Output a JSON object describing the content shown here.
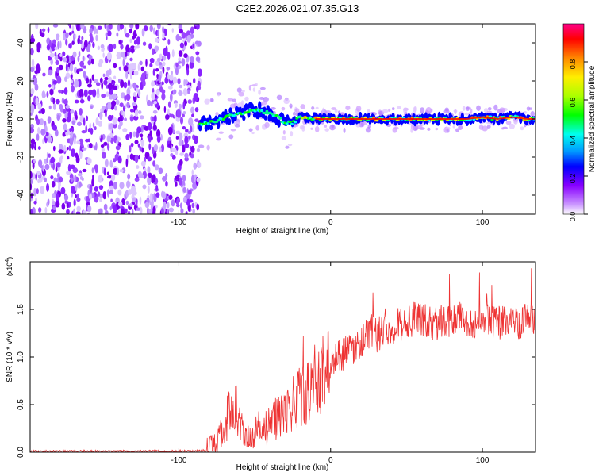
{
  "title": "C2E2.2026.021.07.35.G13",
  "colors": {
    "snr_line": "#ee3333",
    "axis": "#000000",
    "colorbar": [
      "#ffffff",
      "#cc99ff",
      "#8800ff",
      "#0000ff",
      "#0099ff",
      "#00ffee",
      "#00ff00",
      "#aaff00",
      "#ffee00",
      "#ff8800",
      "#ff0000",
      "#ff0088"
    ]
  },
  "chart_data": [
    {
      "type": "heatmap",
      "name": "spectrogram",
      "xlabel": "Height of straight line (km)",
      "ylabel": "Frequency (Hz)",
      "xlim": [
        -198,
        135
      ],
      "ylim": [
        -50,
        50
      ],
      "xticks": [
        -100,
        0,
        100
      ],
      "xtick_labels": [
        "-100",
        "0",
        "100"
      ],
      "yticks": [
        -40,
        -20,
        0,
        20,
        40
      ],
      "ytick_labels": [
        "-40",
        "-20",
        "0",
        "20",
        "40"
      ],
      "noise_region_x": [
        -198,
        -86
      ],
      "signal_track": {
        "x": [
          -86,
          -80,
          -72,
          -65,
          -58,
          -52,
          -46,
          -40,
          -35,
          -30,
          -25,
          -20,
          -15,
          -10,
          -5,
          0,
          10,
          20,
          30,
          40,
          50,
          60,
          70,
          80,
          90,
          100,
          110,
          120,
          130,
          135
        ],
        "y": [
          -3,
          -2,
          0,
          2,
          3,
          5,
          4,
          3,
          1,
          -2,
          -2,
          1,
          1,
          0,
          0,
          0,
          0,
          0,
          0,
          0,
          0,
          0,
          0,
          0,
          0,
          1,
          0,
          1,
          0,
          0
        ]
      },
      "colorbar": {
        "label": "Normalized spectral amplitude",
        "range": [
          0,
          1
        ],
        "ticks": [
          0.0,
          0.2,
          0.4,
          0.6,
          0.8
        ],
        "tick_labels": [
          "0.0",
          "0.2",
          "0.4",
          "0.6",
          "0.8"
        ]
      }
    },
    {
      "type": "line",
      "name": "snr",
      "xlabel": "Height of straight line (km)",
      "ylabel": "SNR (10 * v/v)",
      "exponent_label": "(x10",
      "exponent_power": "4",
      "exponent_close": ")",
      "xlim": [
        -198,
        135
      ],
      "ylim": [
        0,
        2.0
      ],
      "xticks": [
        -100,
        0,
        100
      ],
      "xtick_labels": [
        "-100",
        "0",
        "100"
      ],
      "yticks": [
        0.0,
        0.5,
        1.0,
        1.5
      ],
      "ytick_labels": [
        "0.0",
        "0.5",
        "1.0",
        "1.5"
      ],
      "series": [
        {
          "name": "SNR",
          "x": [
            -198,
            -180,
            -160,
            -140,
            -120,
            -100,
            -90,
            -82,
            -78,
            -74,
            -70,
            -66,
            -62,
            -58,
            -54,
            -50,
            -46,
            -42,
            -38,
            -34,
            -30,
            -26,
            -22,
            -18,
            -14,
            -10,
            -6,
            -2,
            0,
            5,
            10,
            15,
            20,
            25,
            30,
            35,
            40,
            45,
            50,
            55,
            60,
            65,
            70,
            75,
            80,
            85,
            90,
            95,
            100,
            105,
            110,
            115,
            120,
            125,
            130,
            135
          ],
          "y": [
            0.01,
            0.01,
            0.01,
            0.01,
            0.01,
            0.01,
            0.01,
            0.02,
            0.05,
            0.12,
            0.25,
            0.5,
            0.45,
            0.18,
            0.12,
            0.15,
            0.2,
            0.25,
            0.3,
            0.4,
            0.45,
            0.5,
            0.55,
            0.6,
            0.65,
            0.7,
            0.8,
            0.9,
            0.95,
            1.0,
            1.05,
            1.1,
            1.15,
            1.25,
            1.3,
            1.3,
            1.3,
            1.35,
            1.35,
            1.4,
            1.4,
            1.35,
            1.35,
            1.4,
            1.38,
            1.4,
            1.35,
            1.35,
            1.35,
            1.4,
            1.35,
            1.38,
            1.4,
            1.35,
            1.4,
            1.4
          ]
        }
      ]
    }
  ]
}
